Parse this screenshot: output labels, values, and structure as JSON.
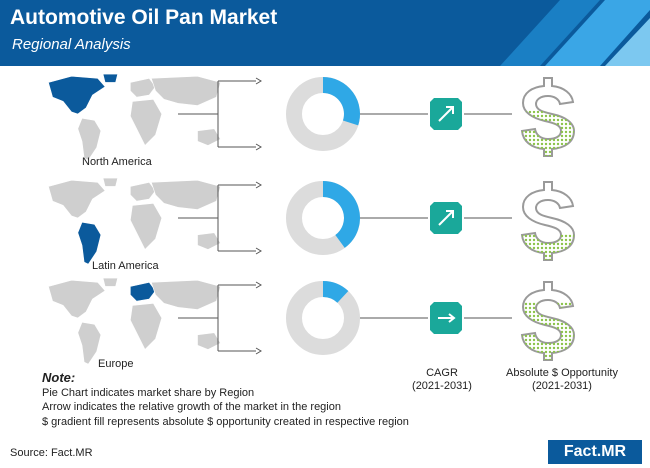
{
  "header": {
    "title": "Automotive Oil Pan Market",
    "subtitle": "Regional Analysis"
  },
  "colors": {
    "header_bg": "#0b5a9c",
    "share_fill": "#2fa8e6",
    "ring_bg": "#dcdcdc",
    "map_highlight": "#0b5a9c",
    "map_base": "#cfcfcf",
    "arrow_badge": "#1aa89a",
    "dollar_stroke": "#9a9a9a",
    "dollar_fill": "#8bc34a"
  },
  "chart_data": {
    "type": "pie",
    "regions": [
      {
        "name": "North America",
        "share": 0.3,
        "growth_arrow": "up",
        "dollar_fill_fraction": 0.55
      },
      {
        "name": "Latin America",
        "share": 0.4,
        "growth_arrow": "up",
        "dollar_fill_fraction": 0.25
      },
      {
        "name": "Europe",
        "share": 0.12,
        "growth_arrow": "right",
        "dollar_fill_fraction": 0.75
      }
    ]
  },
  "columns": {
    "cagr": "CAGR",
    "cagr_period": "(2021-2031)",
    "opportunity": "Absolute $ Opportunity",
    "opportunity_period": "(2021-2031)"
  },
  "note": {
    "title": "Note:",
    "lines": [
      "Pie Chart indicates market share by Region",
      "Arrow indicates the relative growth of the market in the region",
      "$ gradient fill represents absolute $ opportunity created in respective region"
    ]
  },
  "source": "Source: Fact.MR",
  "logo": "Fact.MR"
}
